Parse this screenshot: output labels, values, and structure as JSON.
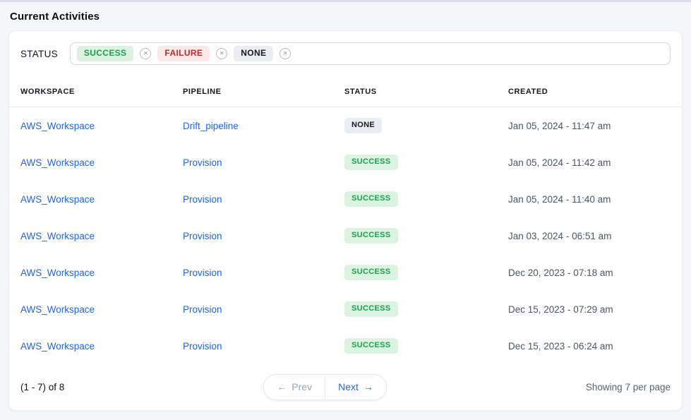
{
  "page": {
    "title": "Current Activities"
  },
  "colors": {
    "link": "#2166e0",
    "success_text": "#16a34a",
    "success_bg": "#ddf3e2",
    "failure_text": "#c62828",
    "failure_bg": "#fbe9e9",
    "none_text": "#15181f",
    "none_bg": "#ebedf5"
  },
  "filter": {
    "label": "STATUS",
    "tags": [
      {
        "label": "SUCCESS",
        "type": "success"
      },
      {
        "label": "FAILURE",
        "type": "failure"
      },
      {
        "label": "NONE",
        "type": "none"
      }
    ]
  },
  "table": {
    "columns": [
      "WORKSPACE",
      "PIPELINE",
      "STATUS",
      "CREATED"
    ],
    "rows": [
      {
        "workspace": "AWS_Workspace",
        "pipeline": "Drift_pipeline",
        "status": "NONE",
        "created": "Jan 05, 2024 - 11:47 am"
      },
      {
        "workspace": "AWS_Workspace",
        "pipeline": "Provision",
        "status": "SUCCESS",
        "created": "Jan 05, 2024 - 11:42 am"
      },
      {
        "workspace": "AWS_Workspace",
        "pipeline": "Provision",
        "status": "SUCCESS",
        "created": "Jan 05, 2024 - 11:40 am"
      },
      {
        "workspace": "AWS_Workspace",
        "pipeline": "Provision",
        "status": "SUCCESS",
        "created": "Jan 03, 2024 - 06:51 am"
      },
      {
        "workspace": "AWS_Workspace",
        "pipeline": "Provision",
        "status": "SUCCESS",
        "created": "Dec 20, 2023 - 07:18 am"
      },
      {
        "workspace": "AWS_Workspace",
        "pipeline": "Provision",
        "status": "SUCCESS",
        "created": "Dec 15, 2023 - 07:29 am"
      },
      {
        "workspace": "AWS_Workspace",
        "pipeline": "Provision",
        "status": "SUCCESS",
        "created": "Dec 15, 2023 - 06:24 am"
      }
    ]
  },
  "pagination": {
    "range_text": "(1 - 7) of 8",
    "prev_label": "Prev",
    "next_label": "Next",
    "per_page_text": "Showing 7 per page"
  },
  "icons": {
    "remove": "✕",
    "arrow_left": "←",
    "arrow_right": "→"
  }
}
